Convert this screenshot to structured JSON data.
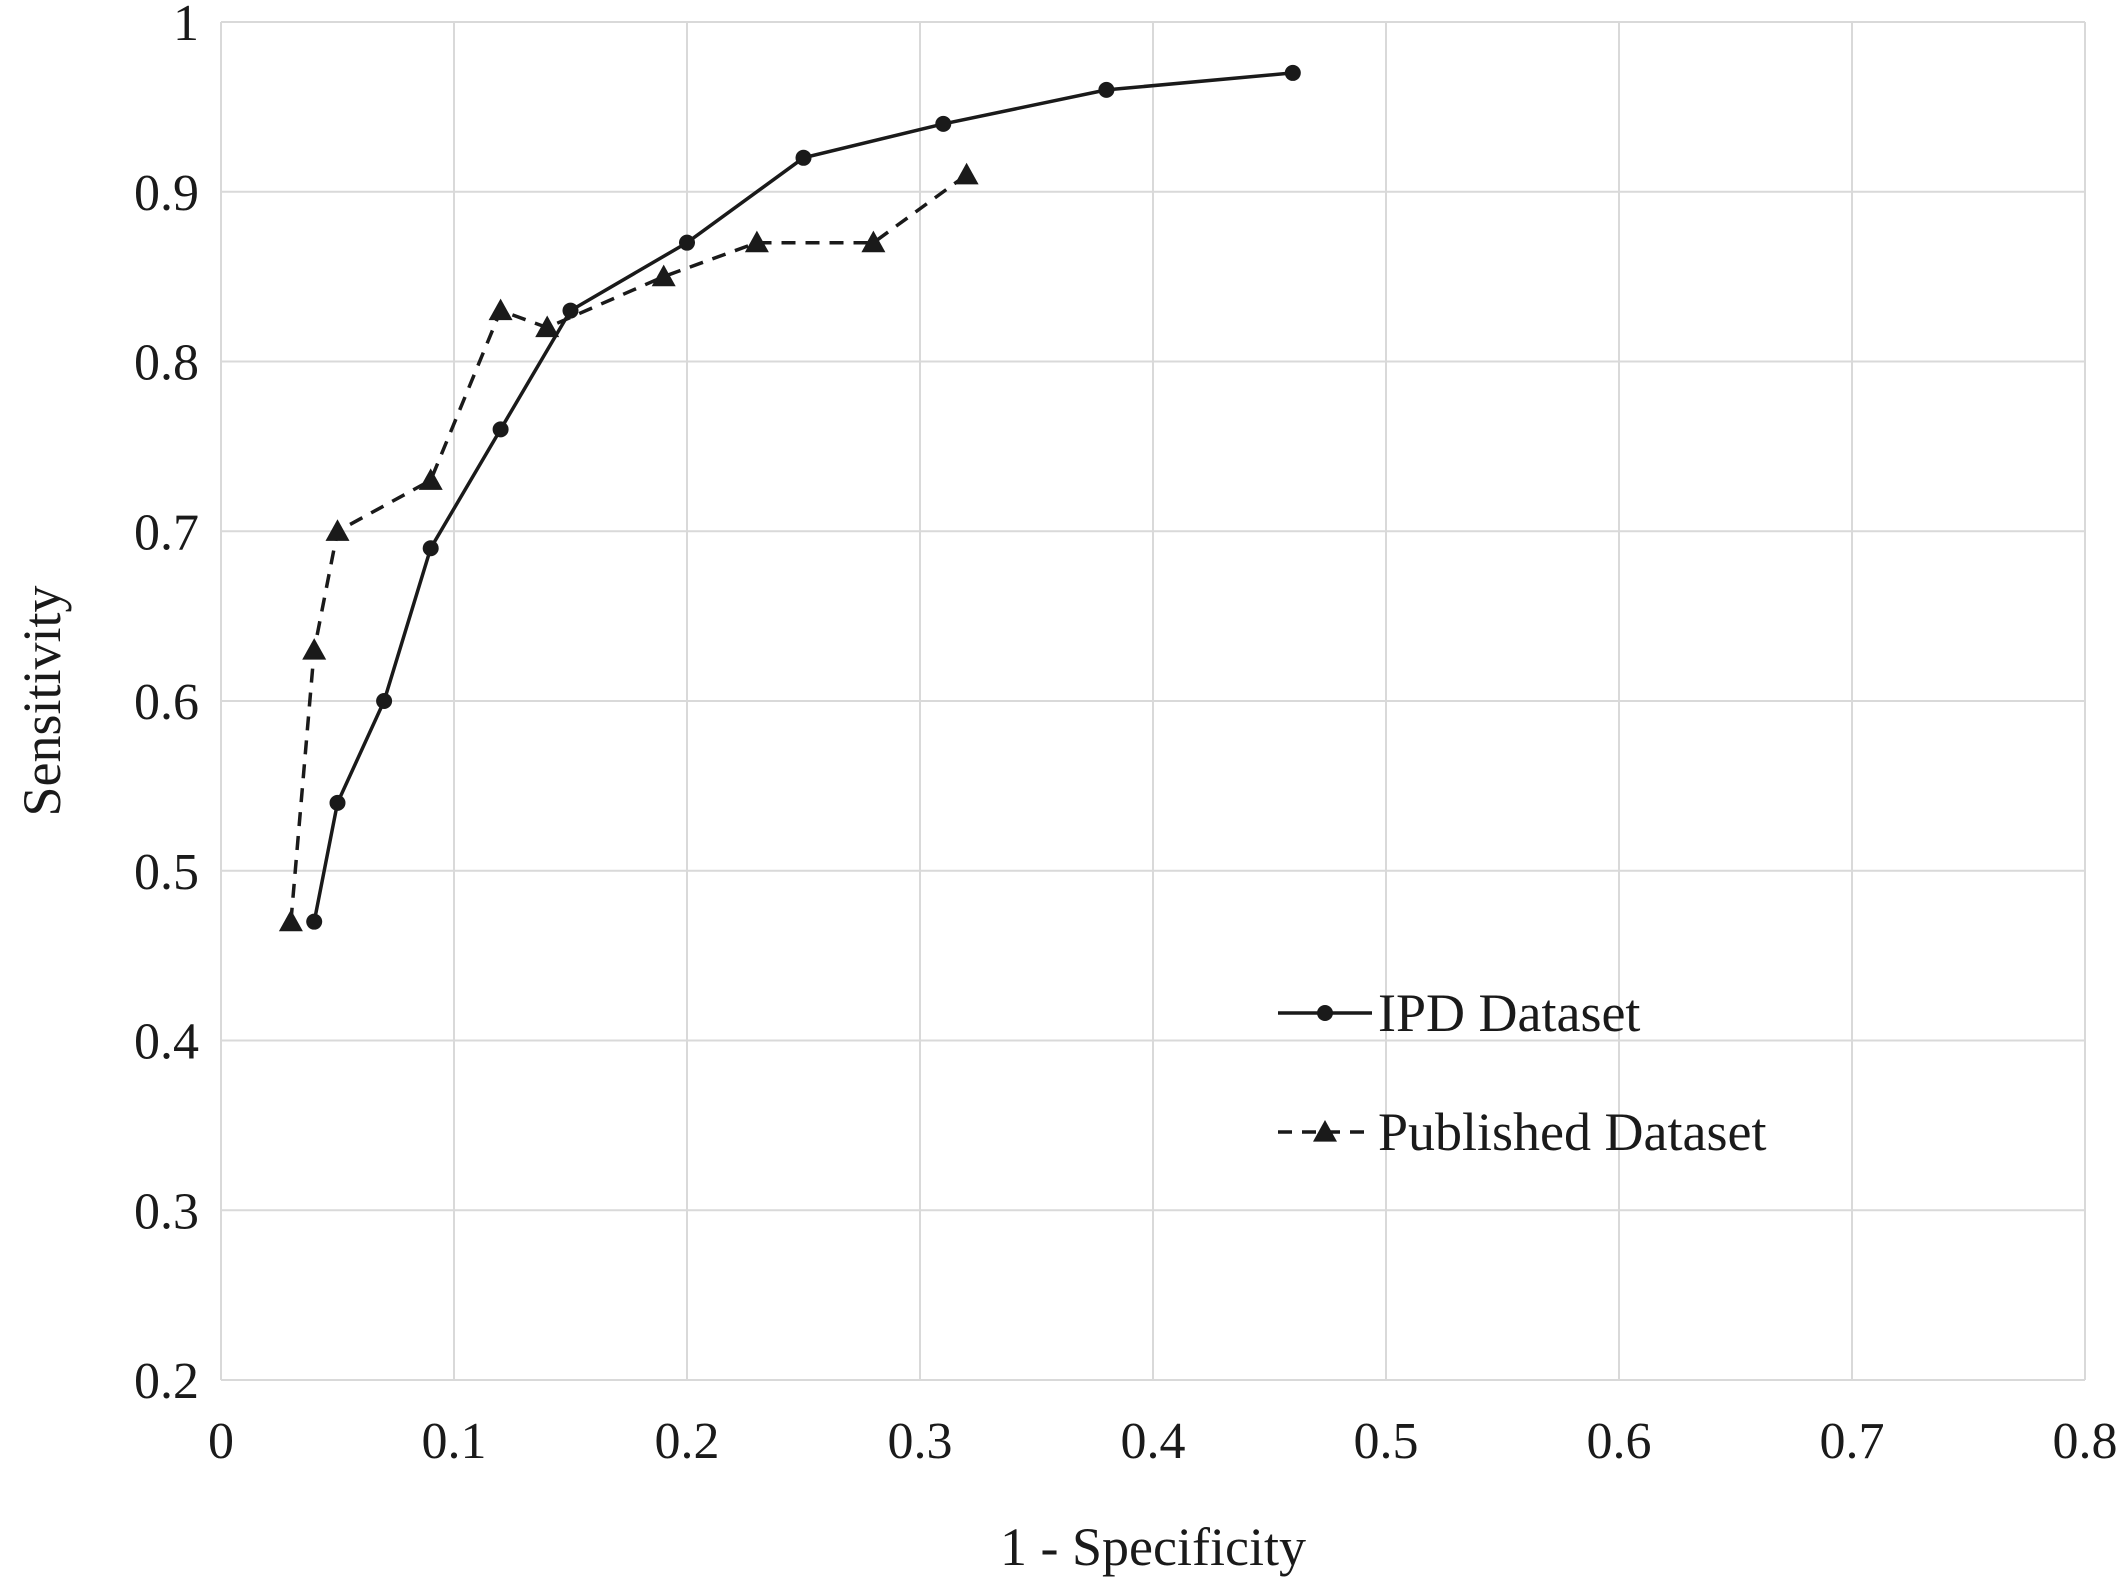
{
  "chart_data": {
    "type": "line",
    "title": "",
    "xlabel": "1 - Specificity",
    "ylabel": "Sensitivity",
    "xlim": [
      0,
      0.8
    ],
    "ylim": [
      0.2,
      1
    ],
    "xticks": [
      "0",
      "0.1",
      "0.2",
      "0.3",
      "0.4",
      "0.5",
      "0.6",
      "0.7",
      "0.8"
    ],
    "yticks": [
      "0.2",
      "0.3",
      "0.4",
      "0.5",
      "0.6",
      "0.7",
      "0.8",
      "0.9",
      "1"
    ],
    "grid": true,
    "legend_position": "lower-right",
    "series": [
      {
        "name": "IPD Dataset",
        "line_style": "solid",
        "marker": "circle",
        "color": "#1a1a1a",
        "points": [
          [
            0.04,
            0.47
          ],
          [
            0.05,
            0.54
          ],
          [
            0.07,
            0.6
          ],
          [
            0.09,
            0.69
          ],
          [
            0.12,
            0.76
          ],
          [
            0.15,
            0.83
          ],
          [
            0.2,
            0.87
          ],
          [
            0.25,
            0.92
          ],
          [
            0.31,
            0.94
          ],
          [
            0.38,
            0.96
          ],
          [
            0.46,
            0.97
          ]
        ]
      },
      {
        "name": "Published Dataset",
        "line_style": "dashed",
        "marker": "triangle",
        "color": "#1a1a1a",
        "points": [
          [
            0.03,
            0.47
          ],
          [
            0.04,
            0.63
          ],
          [
            0.05,
            0.7
          ],
          [
            0.09,
            0.73
          ],
          [
            0.12,
            0.83
          ],
          [
            0.14,
            0.82
          ],
          [
            0.19,
            0.85
          ],
          [
            0.23,
            0.87
          ],
          [
            0.28,
            0.87
          ],
          [
            0.32,
            0.91
          ]
        ]
      }
    ]
  }
}
